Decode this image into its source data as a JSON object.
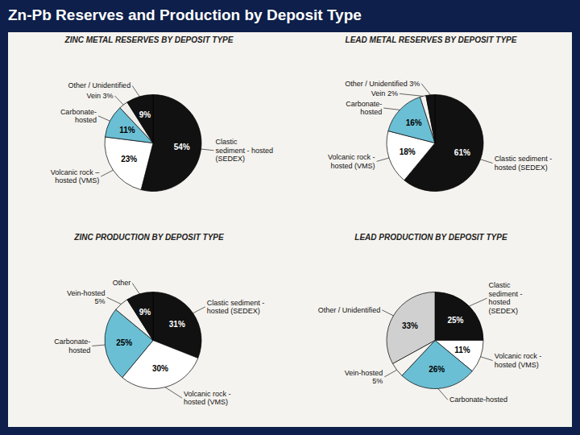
{
  "title": "Zn-Pb Reserves and Production by Deposit Type",
  "chart_data": [
    {
      "type": "pie",
      "title": "ZINC METAL RESERVES BY DEPOSIT TYPE",
      "categories": [
        "Clastic\nsediment - hosted\n(SEDEX)",
        "Volcanic rock –\nhosted (VMS)",
        "Carbonate-\nhosted",
        "Vein 3%",
        "Other / Unidentified"
      ],
      "values": [
        54,
        23,
        11,
        3,
        9
      ],
      "value_labels": [
        "54%",
        "23%",
        "11%",
        null,
        "9%"
      ],
      "colors": [
        "#111111",
        "#ffffff",
        "#6bbfd4",
        "#f0eeea",
        "#111111"
      ],
      "data_labels": true
    },
    {
      "type": "pie",
      "title": "LEAD METAL RESERVES BY DEPOSIT TYPE",
      "categories": [
        "Clastic sediment -\nhosted (SEDEX)",
        "Volcanic rock -\nhosted (VMS)",
        "Carbonate-\nhosted",
        "Vein 2%",
        "Other / Unidentified 3%"
      ],
      "values": [
        61,
        18,
        16,
        2,
        3
      ],
      "value_labels": [
        "61%",
        "18%",
        "16%",
        null,
        null
      ],
      "colors": [
        "#111111",
        "#ffffff",
        "#6bbfd4",
        "#f5f3ef",
        "#111111"
      ],
      "data_labels": true
    },
    {
      "type": "pie",
      "title": "ZINC PRODUCTION BY DEPOSIT TYPE",
      "categories": [
        "Clastic sediment -\nhosted (SEDEX)",
        "Volcanic rock -\nhosted (VMS)",
        "Carbonate-\nhosted",
        "Vein-hosted\n5%",
        "Other"
      ],
      "values": [
        31,
        30,
        25,
        5,
        9
      ],
      "value_labels": [
        "31%",
        "30%",
        "25%",
        null,
        "9%"
      ],
      "colors": [
        "#111111",
        "#ffffff",
        "#6bbfd4",
        "#f5f3ef",
        "#111111"
      ],
      "data_labels": true
    },
    {
      "type": "pie",
      "title": "LEAD PRODUCTION BY DEPOSIT TYPE",
      "categories": [
        "Clastic\nsediment -\nhosted\n(SEDEX)",
        "Volcanic rock -\nhosted (VMS)",
        "Carbonate-hosted",
        "Vein-hosted\n5%",
        "Other / Unidentified"
      ],
      "values": [
        25,
        11,
        26,
        5,
        33
      ],
      "value_labels": [
        "25%",
        "11%",
        "26%",
        null,
        "33%"
      ],
      "colors": [
        "#111111",
        "#ffffff",
        "#6bbfd4",
        "#f5f3ef",
        "#d0d0d0"
      ],
      "data_labels": true
    }
  ]
}
